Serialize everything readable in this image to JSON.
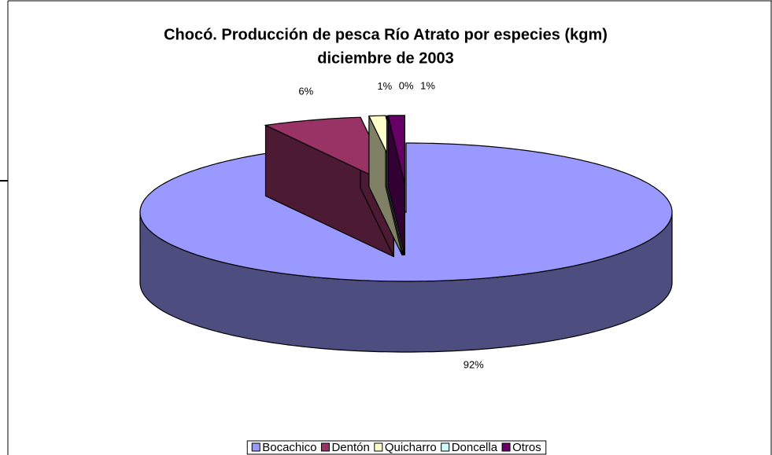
{
  "chart_data": {
    "type": "pie3d",
    "title": "Chocó. Producción de pesca Río Atrato por especies (kgm)",
    "subtitle": "diciembre de 2003",
    "categories": [
      "Bocachico",
      "Dentón",
      "Quicharro",
      "Doncella",
      "Otros"
    ],
    "values": [
      92,
      6,
      1,
      0,
      1
    ],
    "value_labels": [
      "92%",
      "6%",
      "1%",
      "0%",
      "1%"
    ],
    "colors": [
      "#9999ff",
      "#993366",
      "#ffffcc",
      "#ccffff",
      "#660066"
    ],
    "legend": "bottom"
  }
}
